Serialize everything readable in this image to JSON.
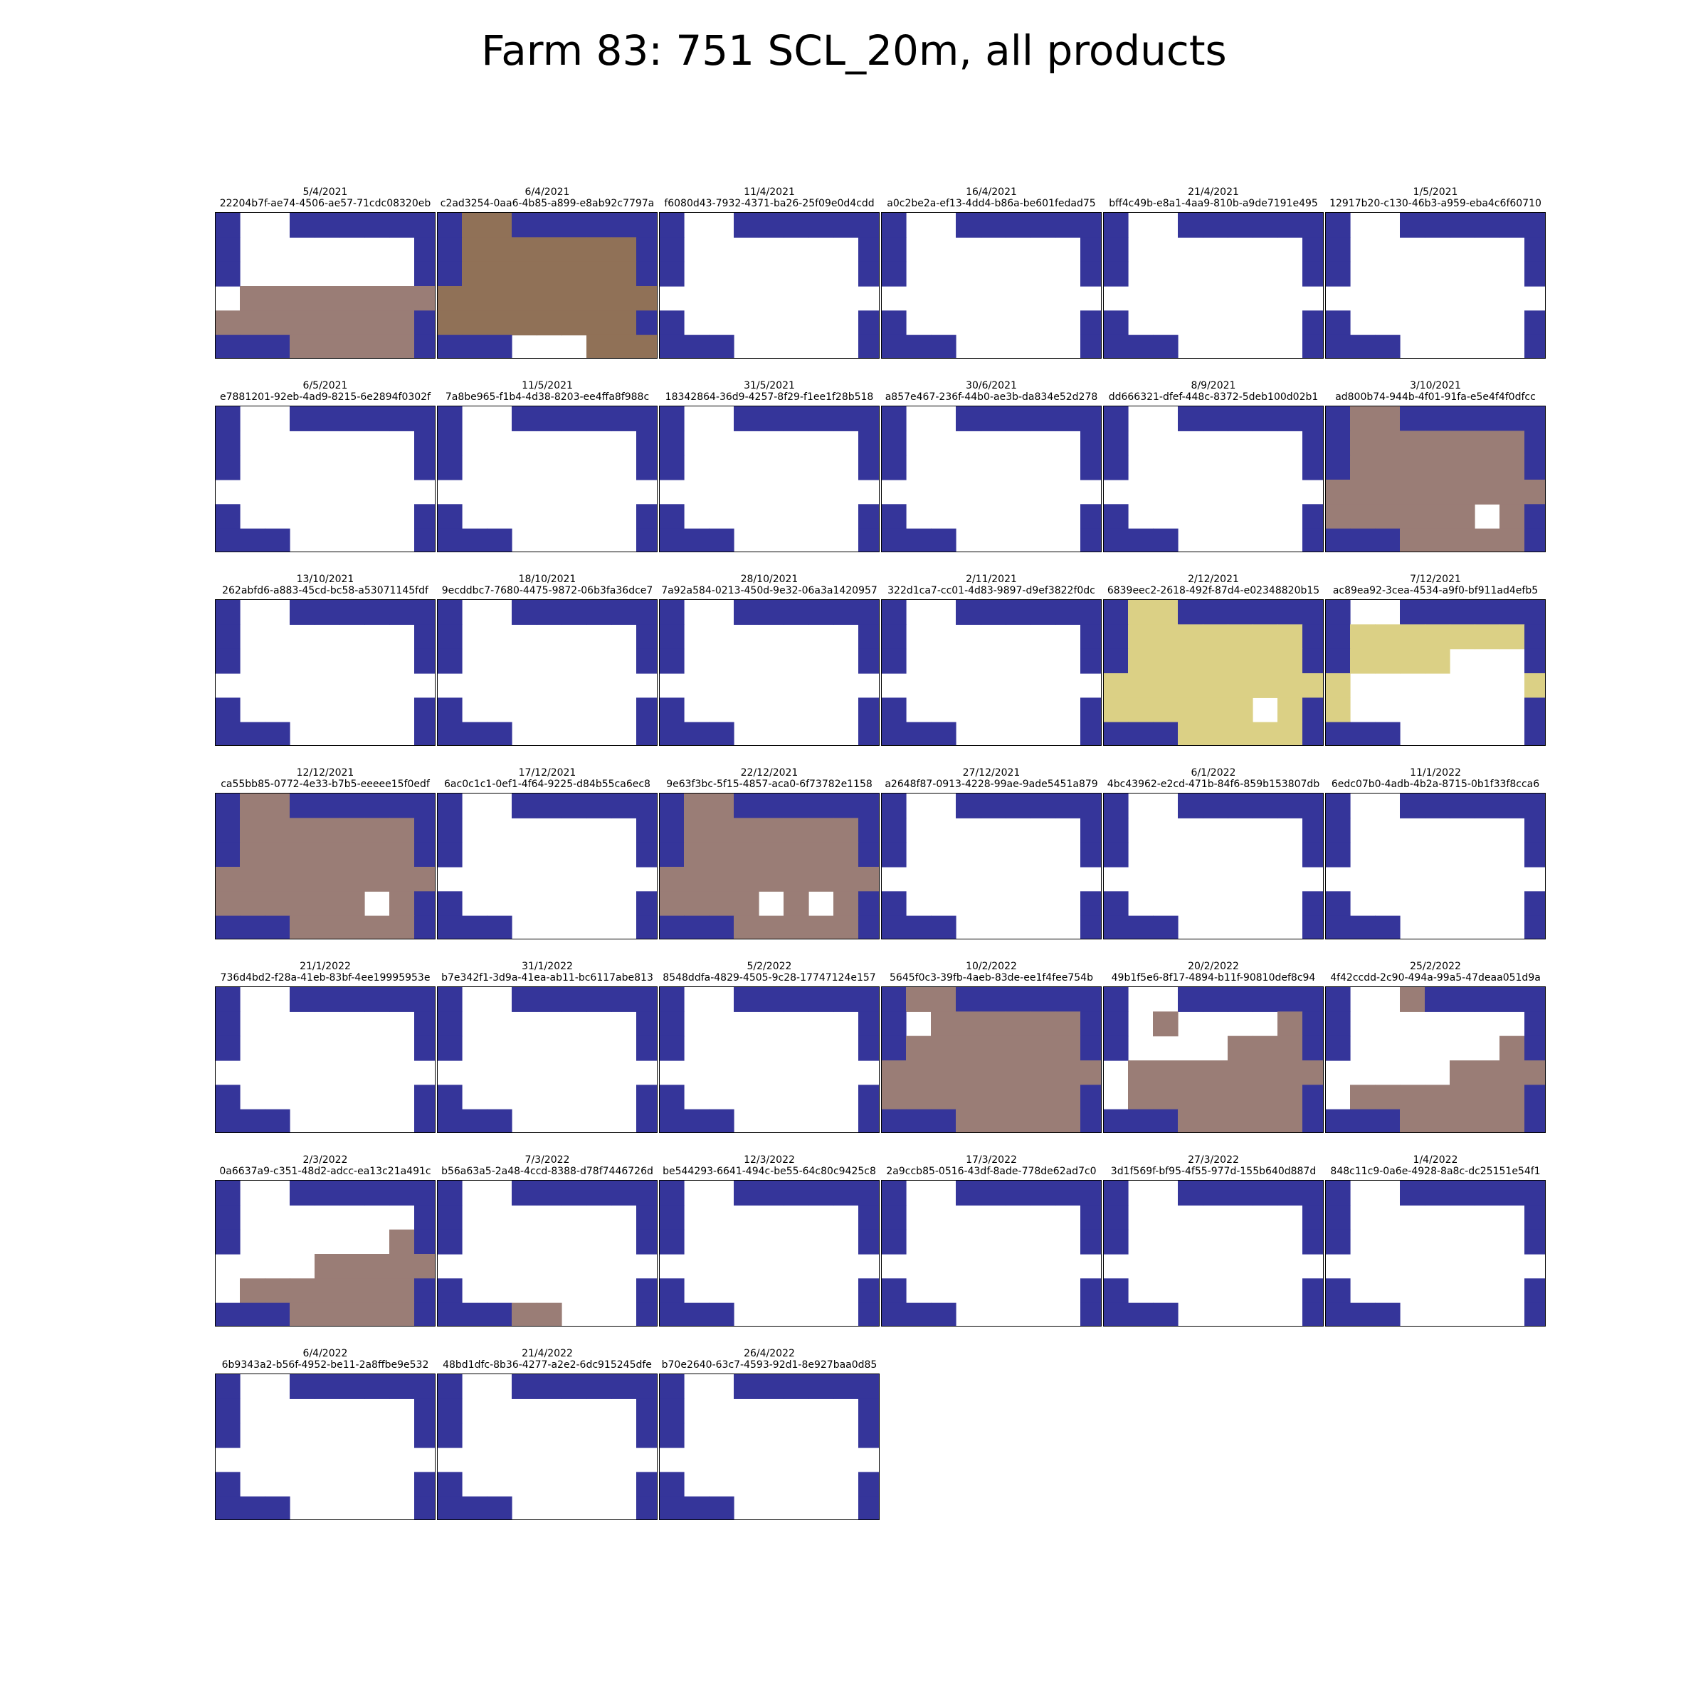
{
  "title": "Farm 83: 751 SCL_20m, all products",
  "chart_data": {
    "type": "heatmap",
    "title": "Farm 83: 751 SCL_20m, all products",
    "grid": false,
    "grid_rows": 6,
    "grid_cols": 9,
    "legend": "none",
    "class_colors": {
      "W": "#ffffff",
      "B": "#35359a",
      "S": "#9a7d76",
      "D": "#907157",
      "Y": "#dbd085"
    },
    "base_mask": [
      "B..BBBBBB",
      "B.......B",
      "B.......B",
      ".........",
      "B.......B",
      "BBB.....B"
    ],
    "panels": [
      {
        "date": "5/4/2021",
        "id": "22204b7f-ae74-4506-ae57-71cdc08320eb",
        "grid": [
          "B..BBBBBB",
          "B.......B",
          "B.......B",
          ".SSSSSSSS",
          "SSSSSSSSB",
          "BBBSSSSSB"
        ]
      },
      {
        "date": "6/4/2021",
        "id": "c2ad3254-0aa6-4b85-a899-e8ab92c7797a",
        "grid": [
          "BDDBBBBBB",
          "BDDDDDDDB",
          "BDDDDDDDB",
          "DDDDDDDDD",
          "DDDDDDDDB",
          "BBB...DDD"
        ]
      },
      {
        "date": "11/4/2021",
        "id": "f6080d43-7932-4371-ba26-25f09e0d4cdd",
        "grid": null
      },
      {
        "date": "16/4/2021",
        "id": "a0c2be2a-ef13-4dd4-b86a-be601fedad75",
        "grid": null
      },
      {
        "date": "21/4/2021",
        "id": "bff4c49b-e8a1-4aa9-810b-a9de7191e495",
        "grid": null
      },
      {
        "date": "1/5/2021",
        "id": "12917b20-c130-46b3-a959-eba4c6f60710",
        "grid": null
      },
      {
        "date": "6/5/2021",
        "id": "e7881201-92eb-4ad9-8215-6e2894f0302f",
        "grid": null
      },
      {
        "date": "11/5/2021",
        "id": "7a8be965-f1b4-4d38-8203-ee4ffa8f988c",
        "grid": null
      },
      {
        "date": "31/5/2021",
        "id": "18342864-36d9-4257-8f29-f1ee1f28b518",
        "grid": null
      },
      {
        "date": "30/6/2021",
        "id": "a857e467-236f-44b0-ae3b-da834e52d278",
        "grid": null
      },
      {
        "date": "8/9/2021",
        "id": "dd666321-dfef-448c-8372-5deb100d02b1",
        "grid": null
      },
      {
        "date": "3/10/2021",
        "id": "ad800b74-944b-4f01-91fa-e5e4f4f0dfcc",
        "grid": [
          "BSSBBBBBB",
          "BSSSSSSSB",
          "BSSSSSSSB",
          "SSSSSSSSS",
          "SSSSSS.SB",
          "BBBSSSSSB"
        ]
      },
      {
        "date": "13/10/2021",
        "id": "262abfd6-a883-45cd-bc58-a53071145fdf",
        "grid": null
      },
      {
        "date": "18/10/2021",
        "id": "9ecddbc7-7680-4475-9872-06b3fa36dce7",
        "grid": null
      },
      {
        "date": "28/10/2021",
        "id": "7a92a584-0213-450d-9e32-06a3a1420957",
        "grid": null
      },
      {
        "date": "2/11/2021",
        "id": "322d1ca7-cc01-4d83-9897-d9ef3822f0dc",
        "grid": null
      },
      {
        "date": "2/12/2021",
        "id": "6839eec2-2618-492f-87d4-e02348820b15",
        "grid": [
          "BYYBBBBBB",
          "BYYYYYYYB",
          "BYYYYYYYB",
          "YYYYYYYYY",
          "YYYYYY.YB",
          "BBBYYYYYB"
        ]
      },
      {
        "date": "7/12/2021",
        "id": "ac89ea92-3cea-4534-a9f0-bf911ad4efb5",
        "grid": [
          "B..BBBBBB",
          "BYYYYYYYB",
          "BYYYY...B",
          "Y.......Y",
          "Y.......B",
          "BBB.....B"
        ]
      },
      {
        "date": "12/12/2021",
        "id": "ca55bb85-0772-4e33-b7b5-eeeee15f0edf",
        "grid": [
          "BSSBBBBBB",
          "BSSSSSSSB",
          "BSSSSSSSB",
          "SSSSSSSSS",
          "SSSSSS.SB",
          "BBBSSSSSB"
        ]
      },
      {
        "date": "17/12/2021",
        "id": "6ac0c1c1-0ef1-4f64-9225-d84b55ca6ec8",
        "grid": null
      },
      {
        "date": "22/12/2021",
        "id": "9e63f3bc-5f15-4857-aca0-6f73782e1158",
        "grid": [
          "BSSBBBBBB",
          "BSSSSSSSB",
          "BSSSSSSSB",
          "SSSSSSSSS",
          "SSSS.S.SB",
          "BBBSSSSSB"
        ]
      },
      {
        "date": "27/12/2021",
        "id": "a2648f87-0913-4228-99ae-9ade5451a879",
        "grid": null
      },
      {
        "date": "6/1/2022",
        "id": "4bc43962-e2cd-471b-84f6-859b153807db",
        "grid": null
      },
      {
        "date": "11/1/2022",
        "id": "6edc07b0-4adb-4b2a-8715-0b1f33f8cca6",
        "grid": null
      },
      {
        "date": "21/1/2022",
        "id": "736d4bd2-f28a-41eb-83bf-4ee19995953e",
        "grid": null
      },
      {
        "date": "31/1/2022",
        "id": "b7e342f1-3d9a-41ea-ab11-bc6117abe813",
        "grid": null
      },
      {
        "date": "5/2/2022",
        "id": "8548ddfa-4829-4505-9c28-17747124e157",
        "grid": null
      },
      {
        "date": "10/2/2022",
        "id": "5645f0c3-39fb-4aeb-83de-ee1f4fee754b",
        "grid": [
          "BSSBBBBBB",
          "B.SSSSSSB",
          "BSSSSSSSB",
          "SSSSSSSSS",
          "SSSSSSSSB",
          "BBBSSSSSB"
        ]
      },
      {
        "date": "20/2/2022",
        "id": "49b1f5e6-8f17-4894-b11f-90810def8c94",
        "grid": [
          "B..BBBBBB",
          "B.S....SB",
          "B....SSSB",
          ".SSSSSSSS",
          ".SSSSSSSB",
          "BBBSSSSSB"
        ]
      },
      {
        "date": "25/2/2022",
        "id": "4f42ccdd-2c90-494a-99a5-47deaa051d9a",
        "grid": [
          "B..SBBBBB",
          "B.......B",
          "B......SB",
          ".....SSSS",
          ".SSSSSSSB",
          "BBBSSSSSB"
        ]
      },
      {
        "date": "2/3/2022",
        "id": "0a6637a9-c351-48d2-adcc-ea13c21a491c",
        "grid": [
          "B..BBBBBB",
          "B.......B",
          "B......SB",
          "....SSSSS",
          ".SSSSSSSB",
          "BBBSSSSSB"
        ]
      },
      {
        "date": "7/3/2022",
        "id": "b56a63a5-2a48-4ccd-8388-d78f7446726d",
        "grid": [
          "B..BBBBBB",
          "B.......B",
          "B.......B",
          ".........",
          "B.......B",
          "BBBSS...B"
        ]
      },
      {
        "date": "12/3/2022",
        "id": "be544293-6641-494c-be55-64c80c9425c8",
        "grid": null
      },
      {
        "date": "17/3/2022",
        "id": "2a9ccb85-0516-43df-8ade-778de62ad7c0",
        "grid": null
      },
      {
        "date": "27/3/2022",
        "id": "3d1f569f-bf95-4f55-977d-155b640d887d",
        "grid": null
      },
      {
        "date": "1/4/2022",
        "id": "848c11c9-0a6e-4928-8a8c-dc25151e54f1",
        "grid": null
      },
      {
        "date": "6/4/2022",
        "id": "6b9343a2-b56f-4952-be11-2a8ffbe9e532",
        "grid": null
      },
      {
        "date": "21/4/2022",
        "id": "48bd1dfc-8b36-4277-a2e2-6dc915245dfe",
        "grid": null
      },
      {
        "date": "26/4/2022",
        "id": "b70e2640-63c7-4593-92d1-8e927baa0d85",
        "grid": null
      }
    ]
  }
}
